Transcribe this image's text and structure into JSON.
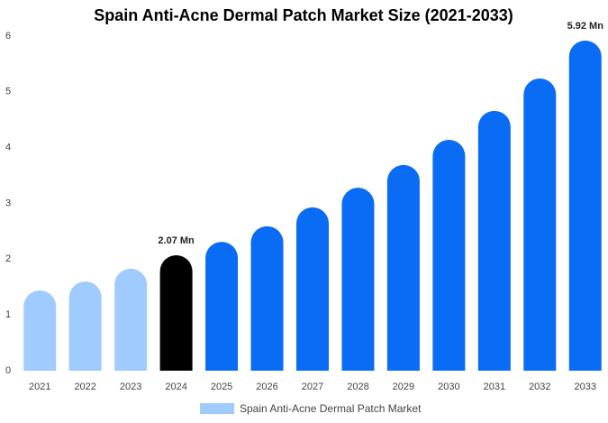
{
  "chart_data": {
    "type": "bar",
    "title": "Spain Anti-Acne Dermal Patch Market Size (2021-2033)",
    "categories": [
      "2021",
      "2022",
      "2023",
      "2024",
      "2025",
      "2026",
      "2027",
      "2028",
      "2029",
      "2030",
      "2031",
      "2032",
      "2033"
    ],
    "series": [
      {
        "name": "Spain Anti-Acne Dermal Patch Market",
        "color": "#a0cbff",
        "values": [
          1.44,
          1.6,
          1.83,
          2.07,
          2.31,
          2.59,
          2.93,
          3.28,
          3.69,
          4.14,
          4.66,
          5.24,
          5.92
        ],
        "value_labels": [
          null,
          null,
          null,
          "2.07 Mn",
          null,
          null,
          null,
          null,
          null,
          null,
          null,
          null,
          "5.92 Mn"
        ],
        "colors": [
          "#a0cbff",
          "#a0cbff",
          "#a0cbff",
          "#000000",
          "#0a6cf5",
          "#0a6cf5",
          "#0a6cf5",
          "#0a6cf5",
          "#0a6cf5",
          "#0a6cf5",
          "#0a6cf5",
          "#0a6cf5",
          "#0a6cf5"
        ]
      }
    ],
    "ylim": [
      0,
      6
    ],
    "yticks": [
      0,
      1,
      2,
      3,
      4,
      5,
      6
    ],
    "grid": false,
    "legend": "bottom"
  }
}
